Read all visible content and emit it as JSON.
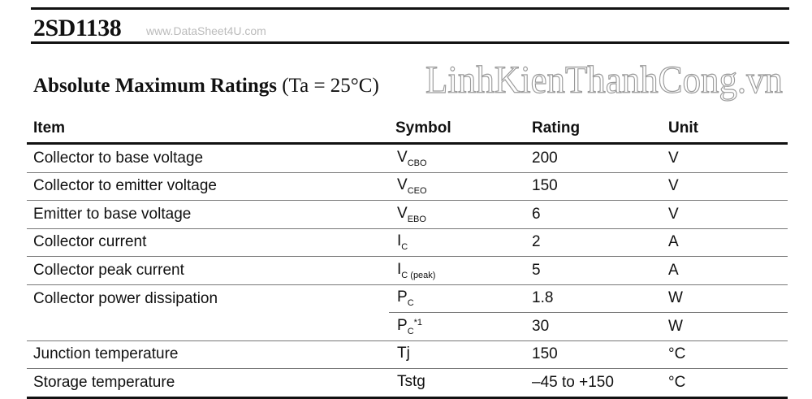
{
  "title": "2SD1138",
  "watermark_top": "www.DataSheet4U.com",
  "watermark_diagonal": "LinhKienThanhCong.vn",
  "heading": {
    "main": "Absolute Maximum Ratings",
    "condition": "(Ta = 25°C)"
  },
  "table": {
    "headers": [
      "Item",
      "Symbol",
      "Rating",
      "Unit"
    ],
    "rows": [
      {
        "item": "Collector to base voltage",
        "sym": "V",
        "sub": "CBO",
        "sup": "",
        "rating": "200",
        "unit": "V"
      },
      {
        "item": "Collector to emitter voltage",
        "sym": "V",
        "sub": "CEO",
        "sup": "",
        "rating": "150",
        "unit": "V"
      },
      {
        "item": "Emitter to base voltage",
        "sym": "V",
        "sub": "EBO",
        "sup": "",
        "rating": "6",
        "unit": "V"
      },
      {
        "item": "Collector current",
        "sym": "I",
        "sub": "C",
        "sup": "",
        "rating": "2",
        "unit": "A"
      },
      {
        "item": "Collector peak current",
        "sym": "I",
        "sub": "C (peak)",
        "sup": "",
        "rating": "5",
        "unit": "A"
      },
      {
        "item": "Collector power dissipation",
        "sym": "P",
        "sub": "C",
        "sup": "",
        "rating": "1.8",
        "unit": "W"
      },
      {
        "item": "",
        "sym": "P",
        "sub": "C",
        "sup": "*1",
        "rating": "30",
        "unit": "W"
      },
      {
        "item": "Junction temperature",
        "sym": "Tj",
        "sub": "",
        "sup": "",
        "rating": "150",
        "unit": "°C"
      },
      {
        "item": "Storage temperature",
        "sym": "Tstg",
        "sub": "",
        "sup": "",
        "rating": "–45 to +150",
        "unit": "°C"
      }
    ]
  }
}
